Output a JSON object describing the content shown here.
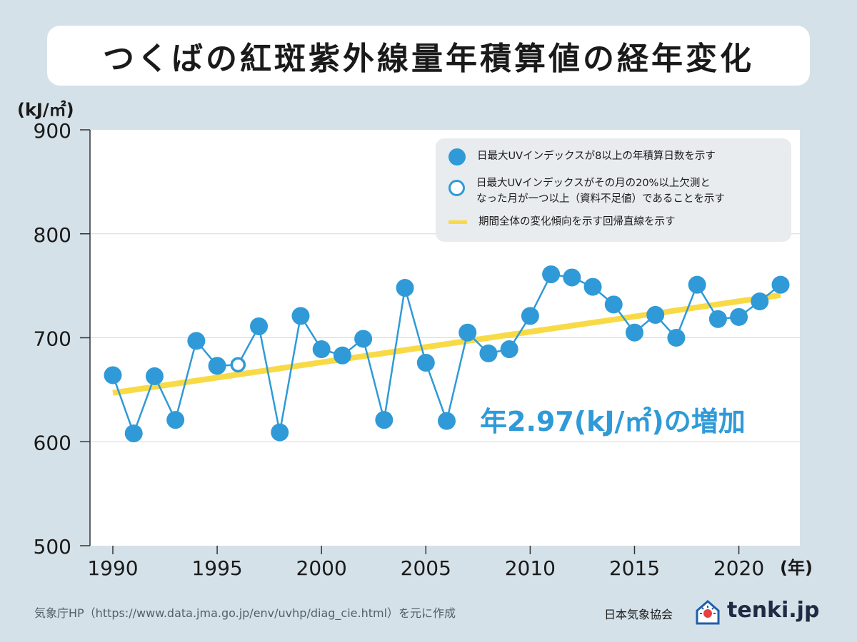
{
  "title": "つくばの紅斑紫外線量年積算値の経年変化",
  "chart_data": {
    "type": "line",
    "ylabel_unit": "(kJ/㎡)",
    "xlabel_unit": "(年)",
    "ylim": [
      500,
      900
    ],
    "xlim": [
      1990,
      2022
    ],
    "y_ticks": [
      500,
      600,
      700,
      800,
      900
    ],
    "x_ticks": [
      1990,
      1995,
      2000,
      2005,
      2010,
      2015,
      2020
    ],
    "gridlines": [
      600,
      700,
      800
    ],
    "series": [
      {
        "name": "日最大UVインデックスが8以上の年積算日数を示す",
        "years": [
          1990,
          1991,
          1992,
          1993,
          1994,
          1995,
          1996,
          1997,
          1998,
          1999,
          2000,
          2001,
          2002,
          2003,
          2004,
          2005,
          2006,
          2007,
          2008,
          2009,
          2010,
          2011,
          2012,
          2013,
          2014,
          2015,
          2016,
          2017,
          2018,
          2019,
          2020,
          2021,
          2022
        ],
        "values": [
          664,
          608,
          663,
          621,
          697,
          673,
          674,
          711,
          609,
          721,
          689,
          683,
          699,
          621,
          748,
          676,
          620,
          705,
          685,
          689,
          721,
          761,
          758,
          749,
          732,
          705,
          722,
          700,
          751,
          718,
          720,
          735,
          751
        ],
        "open_markers": [
          1996
        ]
      }
    ],
    "trend": {
      "start": [
        1990,
        647
      ],
      "end": [
        2022,
        741
      ]
    },
    "legend": [
      {
        "marker": "filled-circle",
        "label": "日最大UVインデックスが8以上の年積算日数を示す"
      },
      {
        "marker": "open-circle",
        "label": "日最大UVインデックスがその月の20%以上欠測と\nなった月が一つ以上（資料不足値）であることを示す"
      },
      {
        "marker": "yellow-line",
        "label": "期間全体の変化傾向を示す回帰直線を示す"
      }
    ],
    "annotation": "年2.97(kJ/㎡)の増加"
  },
  "colors": {
    "background": "#d5e1e8",
    "plot_bg": "#ffffff",
    "series": "#2f9ad7",
    "trend": "#f8da47",
    "axis": "#333333",
    "grid": "#d8d8d8"
  },
  "footer": {
    "source": "気象庁HP（https://www.data.jma.go.jp/env/uvhp/diag_cie.html）を元に作成",
    "credit": "日本気象協会",
    "logo": "tenki.jp",
    "logo_icon": "house-sun-icon"
  }
}
